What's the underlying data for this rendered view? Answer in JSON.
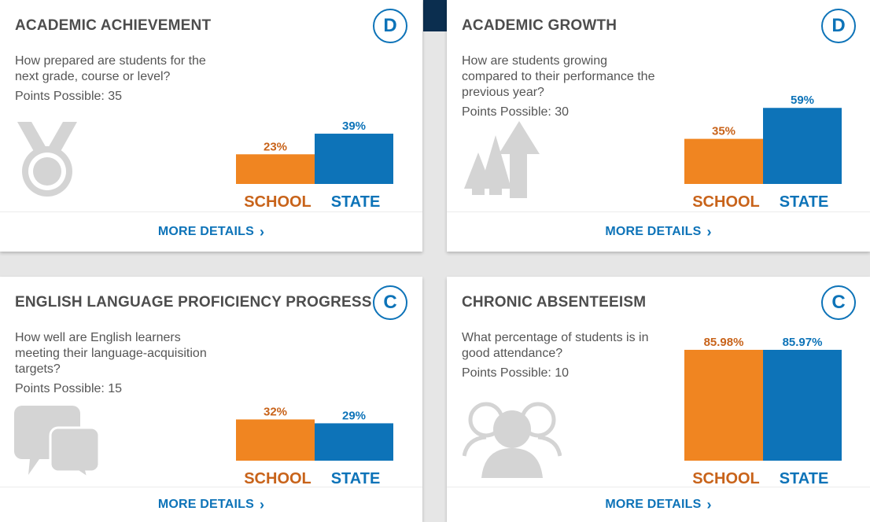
{
  "colors": {
    "school": "#f08521",
    "state": "#0d73b8",
    "grade": "#0d73b8",
    "icon": "#d4d4d4"
  },
  "cards": [
    {
      "title": "ACADEMIC ACHIEVEMENT",
      "grade": "D",
      "question": "How prepared are students for the next grade, course or level?",
      "points": "Points Possible: 35",
      "icon": "medal-icon",
      "more_details": "MORE DETAILS",
      "chart_data": {
        "type": "bar",
        "categories": [
          "SCHOOL",
          "STATE"
        ],
        "values": [
          23,
          39
        ],
        "labels": [
          "23%",
          "39%"
        ]
      }
    },
    {
      "title": "ACADEMIC GROWTH",
      "grade": "D",
      "question": "How are students growing compared to their performance the previous year?",
      "points": "Points Possible: 30",
      "icon": "growth-arrows-icon",
      "more_details": "MORE DETAILS",
      "chart_data": {
        "type": "bar",
        "categories": [
          "SCHOOL",
          "STATE"
        ],
        "values": [
          35,
          59
        ],
        "labels": [
          "35%",
          "59%"
        ]
      }
    },
    {
      "title": "ENGLISH LANGUAGE PROFICIENCY PROGRESS",
      "grade": "C",
      "question": "How well are English learners meeting their language-acquisition targets?",
      "points": "Points Possible: 15",
      "icon": "chat-bubbles-icon",
      "more_details": "MORE DETAILS",
      "chart_data": {
        "type": "bar",
        "categories": [
          "SCHOOL",
          "STATE"
        ],
        "values": [
          32,
          29
        ],
        "labels": [
          "32%",
          "29%"
        ]
      }
    },
    {
      "title": "CHRONIC ABSENTEEISM",
      "grade": "C",
      "question": "What percentage of students is in good attendance?",
      "points": "Points Possible: 10",
      "icon": "people-icon",
      "more_details": "MORE DETAILS",
      "chart_data": {
        "type": "bar",
        "categories": [
          "SCHOOL",
          "STATE"
        ],
        "values": [
          85.98,
          85.97
        ],
        "labels": [
          "85.98%",
          "85.97%"
        ]
      }
    }
  ]
}
